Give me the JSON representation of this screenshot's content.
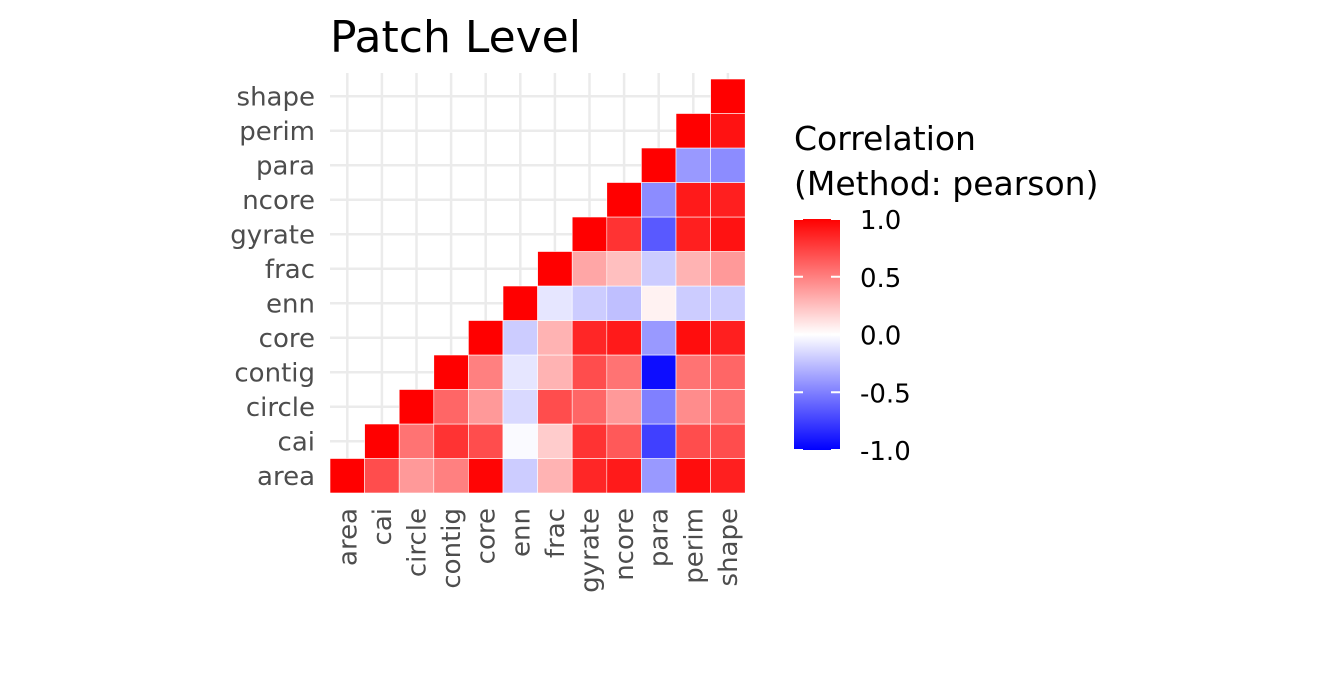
{
  "chart_data": {
    "type": "heatmap",
    "title": "Patch Level",
    "xlabel": "",
    "ylabel": "",
    "variables": [
      "area",
      "cai",
      "circle",
      "contig",
      "core",
      "enn",
      "frac",
      "gyrate",
      "ncore",
      "para",
      "perim",
      "shape"
    ],
    "matrix_part": "lower-triangle (x index >= y index)",
    "cells": [
      {
        "x": "area",
        "y": "area",
        "value": 1.0
      },
      {
        "x": "cai",
        "y": "area",
        "value": 0.7
      },
      {
        "x": "circle",
        "y": "area",
        "value": 0.4
      },
      {
        "x": "contig",
        "y": "area",
        "value": 0.5
      },
      {
        "x": "core",
        "y": "area",
        "value": 0.98
      },
      {
        "x": "enn",
        "y": "area",
        "value": -0.2
      },
      {
        "x": "frac",
        "y": "area",
        "value": 0.3
      },
      {
        "x": "gyrate",
        "y": "area",
        "value": 0.85
      },
      {
        "x": "ncore",
        "y": "area",
        "value": 0.9
      },
      {
        "x": "para",
        "y": "area",
        "value": -0.4
      },
      {
        "x": "perim",
        "y": "area",
        "value": 0.95
      },
      {
        "x": "shape",
        "y": "area",
        "value": 0.88
      },
      {
        "x": "cai",
        "y": "cai",
        "value": 1.0
      },
      {
        "x": "circle",
        "y": "cai",
        "value": 0.55
      },
      {
        "x": "contig",
        "y": "cai",
        "value": 0.8
      },
      {
        "x": "core",
        "y": "cai",
        "value": 0.7
      },
      {
        "x": "enn",
        "y": "cai",
        "value": -0.02
      },
      {
        "x": "frac",
        "y": "cai",
        "value": 0.2
      },
      {
        "x": "gyrate",
        "y": "cai",
        "value": 0.8
      },
      {
        "x": "ncore",
        "y": "cai",
        "value": 0.65
      },
      {
        "x": "para",
        "y": "cai",
        "value": -0.75
      },
      {
        "x": "perim",
        "y": "cai",
        "value": 0.7
      },
      {
        "x": "shape",
        "y": "cai",
        "value": 0.7
      },
      {
        "x": "circle",
        "y": "circle",
        "value": 1.0
      },
      {
        "x": "contig",
        "y": "circle",
        "value": 0.6
      },
      {
        "x": "core",
        "y": "circle",
        "value": 0.4
      },
      {
        "x": "enn",
        "y": "circle",
        "value": -0.15
      },
      {
        "x": "frac",
        "y": "circle",
        "value": 0.7
      },
      {
        "x": "gyrate",
        "y": "circle",
        "value": 0.6
      },
      {
        "x": "ncore",
        "y": "circle",
        "value": 0.4
      },
      {
        "x": "para",
        "y": "circle",
        "value": -0.5
      },
      {
        "x": "perim",
        "y": "circle",
        "value": 0.45
      },
      {
        "x": "shape",
        "y": "circle",
        "value": 0.55
      },
      {
        "x": "contig",
        "y": "contig",
        "value": 1.0
      },
      {
        "x": "core",
        "y": "contig",
        "value": 0.5
      },
      {
        "x": "enn",
        "y": "contig",
        "value": -0.1
      },
      {
        "x": "frac",
        "y": "contig",
        "value": 0.3
      },
      {
        "x": "gyrate",
        "y": "contig",
        "value": 0.7
      },
      {
        "x": "ncore",
        "y": "contig",
        "value": 0.55
      },
      {
        "x": "para",
        "y": "contig",
        "value": -0.95
      },
      {
        "x": "perim",
        "y": "contig",
        "value": 0.55
      },
      {
        "x": "shape",
        "y": "contig",
        "value": 0.6
      },
      {
        "x": "core",
        "y": "core",
        "value": 1.0
      },
      {
        "x": "enn",
        "y": "core",
        "value": -0.2
      },
      {
        "x": "frac",
        "y": "core",
        "value": 0.3
      },
      {
        "x": "gyrate",
        "y": "core",
        "value": 0.85
      },
      {
        "x": "ncore",
        "y": "core",
        "value": 0.9
      },
      {
        "x": "para",
        "y": "core",
        "value": -0.4
      },
      {
        "x": "perim",
        "y": "core",
        "value": 0.95
      },
      {
        "x": "shape",
        "y": "core",
        "value": 0.88
      },
      {
        "x": "enn",
        "y": "enn",
        "value": 1.0
      },
      {
        "x": "frac",
        "y": "enn",
        "value": -0.1
      },
      {
        "x": "gyrate",
        "y": "enn",
        "value": -0.2
      },
      {
        "x": "ncore",
        "y": "enn",
        "value": -0.25
      },
      {
        "x": "para",
        "y": "enn",
        "value": 0.05
      },
      {
        "x": "perim",
        "y": "enn",
        "value": -0.2
      },
      {
        "x": "shape",
        "y": "enn",
        "value": -0.2
      },
      {
        "x": "frac",
        "y": "frac",
        "value": 1.0
      },
      {
        "x": "gyrate",
        "y": "frac",
        "value": 0.35
      },
      {
        "x": "ncore",
        "y": "frac",
        "value": 0.25
      },
      {
        "x": "para",
        "y": "frac",
        "value": -0.2
      },
      {
        "x": "perim",
        "y": "frac",
        "value": 0.3
      },
      {
        "x": "shape",
        "y": "frac",
        "value": 0.4
      },
      {
        "x": "gyrate",
        "y": "gyrate",
        "value": 1.0
      },
      {
        "x": "ncore",
        "y": "gyrate",
        "value": 0.8
      },
      {
        "x": "para",
        "y": "gyrate",
        "value": -0.65
      },
      {
        "x": "perim",
        "y": "gyrate",
        "value": 0.88
      },
      {
        "x": "shape",
        "y": "gyrate",
        "value": 0.93
      },
      {
        "x": "ncore",
        "y": "ncore",
        "value": 1.0
      },
      {
        "x": "para",
        "y": "ncore",
        "value": -0.45
      },
      {
        "x": "perim",
        "y": "ncore",
        "value": 0.9
      },
      {
        "x": "shape",
        "y": "ncore",
        "value": 0.88
      },
      {
        "x": "para",
        "y": "para",
        "value": 1.0
      },
      {
        "x": "perim",
        "y": "para",
        "value": -0.4
      },
      {
        "x": "shape",
        "y": "para",
        "value": -0.45
      },
      {
        "x": "perim",
        "y": "perim",
        "value": 1.0
      },
      {
        "x": "shape",
        "y": "perim",
        "value": 0.93
      },
      {
        "x": "shape",
        "y": "shape",
        "value": 1.0
      }
    ],
    "legend": {
      "title_line1": "Correlation",
      "title_line2": "(Method: pearson)",
      "ticks": [
        "1.0",
        "0.5",
        "0.0",
        "-0.5",
        "-1.0"
      ],
      "range": [
        -1,
        1
      ],
      "placement": "right"
    },
    "color_scale": {
      "low": "#0000ff",
      "mid": "#ffffff",
      "high": "#ff0000"
    },
    "grid": true
  }
}
